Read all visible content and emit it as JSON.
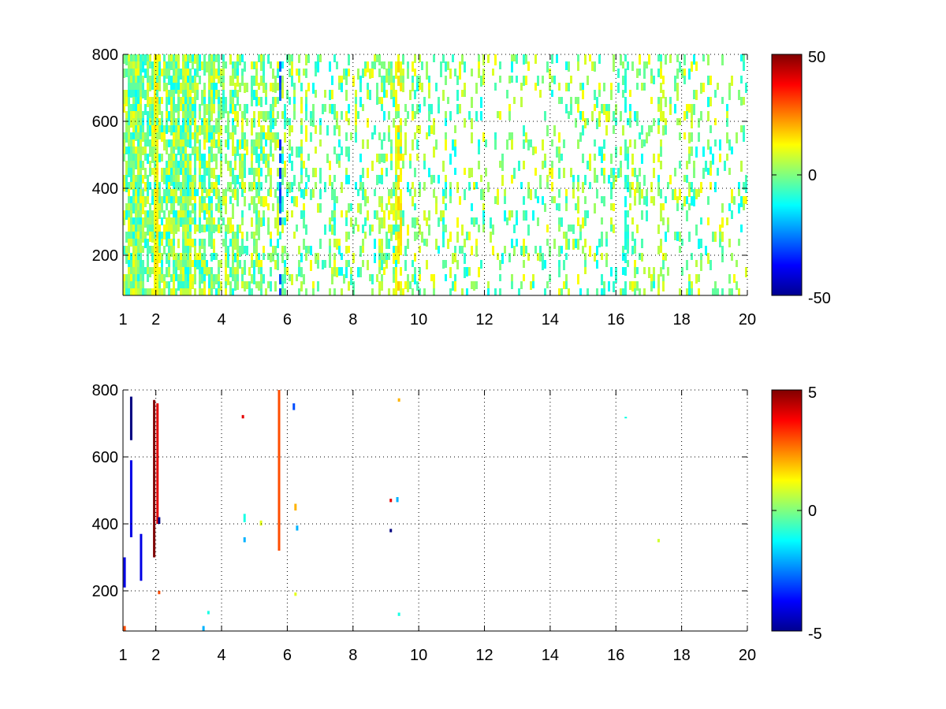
{
  "chart_data": [
    {
      "type": "heatmap",
      "title": "",
      "xlabel": "",
      "ylabel": "",
      "xlim": [
        1,
        20
      ],
      "ylim": [
        80,
        800
      ],
      "x_ticks": [
        1,
        2,
        4,
        6,
        8,
        10,
        12,
        14,
        16,
        18,
        20
      ],
      "x_tick_labels": [
        "1",
        "2",
        "4",
        "6",
        "8",
        "10",
        "12",
        "14",
        "16",
        "18",
        "20"
      ],
      "y_ticks": [
        200,
        400,
        600,
        800
      ],
      "y_tick_labels": [
        "200",
        "400",
        "600",
        "800"
      ],
      "grid": true,
      "grid_style": "dotted",
      "colormap": "jet",
      "colorbar": {
        "range": [
          -50,
          50
        ],
        "ticks": [
          -50,
          0,
          50
        ],
        "tick_labels": [
          "-50",
          "0",
          "50"
        ]
      },
      "missing_values": "white",
      "density_profile": [
        [
          1,
          0.85
        ],
        [
          3,
          0.75
        ],
        [
          4,
          0.55
        ],
        [
          5.5,
          0.4
        ],
        [
          6,
          0.3
        ],
        [
          8,
          0.22
        ],
        [
          9.2,
          0.35
        ],
        [
          10,
          0.2
        ],
        [
          13,
          0.16
        ],
        [
          16,
          0.2
        ],
        [
          18,
          0.18
        ],
        [
          20,
          0.15
        ]
      ],
      "highlight_columns": [
        {
          "x": 1.95,
          "value": 12,
          "density": 0.7
        },
        {
          "x": 5.75,
          "value": -30,
          "density": 0.95
        },
        {
          "x": 9.3,
          "value": 10,
          "density": 0.8
        },
        {
          "x": 9.4,
          "value": 14,
          "density": 0.7
        },
        {
          "x": 16.3,
          "value": -8,
          "density": 0.6
        },
        {
          "x": 17.3,
          "value": 6,
          "density": 0.5
        }
      ]
    },
    {
      "type": "heatmap",
      "title": "",
      "xlabel": "",
      "ylabel": "",
      "xlim": [
        1,
        20
      ],
      "ylim": [
        80,
        800
      ],
      "x_ticks": [
        1,
        2,
        4,
        6,
        8,
        10,
        12,
        14,
        16,
        18,
        20
      ],
      "x_tick_labels": [
        "1",
        "2",
        "4",
        "6",
        "8",
        "10",
        "12",
        "14",
        "16",
        "18",
        "20"
      ],
      "y_ticks": [
        200,
        400,
        600,
        800
      ],
      "y_tick_labels": [
        "200",
        "400",
        "600",
        "800"
      ],
      "grid": true,
      "grid_style": "dotted",
      "colormap": "jet",
      "colorbar": {
        "range": [
          -5,
          5
        ],
        "ticks": [
          -5,
          0,
          5
        ],
        "tick_labels": [
          "-5",
          "0",
          "5"
        ]
      },
      "missing_values": "white",
      "cells": [
        {
          "x": 1.05,
          "y0": 210,
          "y1": 300,
          "value": -4
        },
        {
          "x": 1.05,
          "y0": 80,
          "y1": 95,
          "value": 3
        },
        {
          "x": 1.25,
          "y0": 650,
          "y1": 780,
          "value": -5
        },
        {
          "x": 1.25,
          "y0": 360,
          "y1": 590,
          "value": -4
        },
        {
          "x": 1.55,
          "y0": 230,
          "y1": 370,
          "value": -4
        },
        {
          "x": 1.95,
          "y0": 300,
          "y1": 770,
          "value": 5
        },
        {
          "x": 2.05,
          "y0": 400,
          "y1": 760,
          "value": 4
        },
        {
          "x": 2.1,
          "y0": 400,
          "y1": 420,
          "value": -5
        },
        {
          "x": 2.1,
          "y0": 190,
          "y1": 200,
          "value": 3
        },
        {
          "x": 3.45,
          "y0": 80,
          "y1": 95,
          "value": -2
        },
        {
          "x": 3.6,
          "y0": 130,
          "y1": 140,
          "value": -1
        },
        {
          "x": 4.65,
          "y0": 715,
          "y1": 725,
          "value": 4
        },
        {
          "x": 4.7,
          "y0": 405,
          "y1": 430,
          "value": -1
        },
        {
          "x": 4.7,
          "y0": 345,
          "y1": 360,
          "value": -2
        },
        {
          "x": 5.2,
          "y0": 395,
          "y1": 410,
          "value": 1
        },
        {
          "x": 5.75,
          "y0": 320,
          "y1": 800,
          "value": 3
        },
        {
          "x": 6.2,
          "y0": 740,
          "y1": 760,
          "value": -3
        },
        {
          "x": 6.25,
          "y0": 440,
          "y1": 460,
          "value": 2
        },
        {
          "x": 6.3,
          "y0": 380,
          "y1": 395,
          "value": -2
        },
        {
          "x": 6.25,
          "y0": 185,
          "y1": 195,
          "value": 1
        },
        {
          "x": 9.15,
          "y0": 465,
          "y1": 475,
          "value": 4
        },
        {
          "x": 9.35,
          "y0": 465,
          "y1": 480,
          "value": -2
        },
        {
          "x": 9.15,
          "y0": 375,
          "y1": 385,
          "value": -5
        },
        {
          "x": 9.4,
          "y0": 765,
          "y1": 775,
          "value": 2
        },
        {
          "x": 9.4,
          "y0": 125,
          "y1": 135,
          "value": -1
        },
        {
          "x": 16.3,
          "y0": 715,
          "y1": 720,
          "value": -1
        },
        {
          "x": 17.3,
          "y0": 345,
          "y1": 355,
          "value": 0.8
        }
      ]
    }
  ]
}
